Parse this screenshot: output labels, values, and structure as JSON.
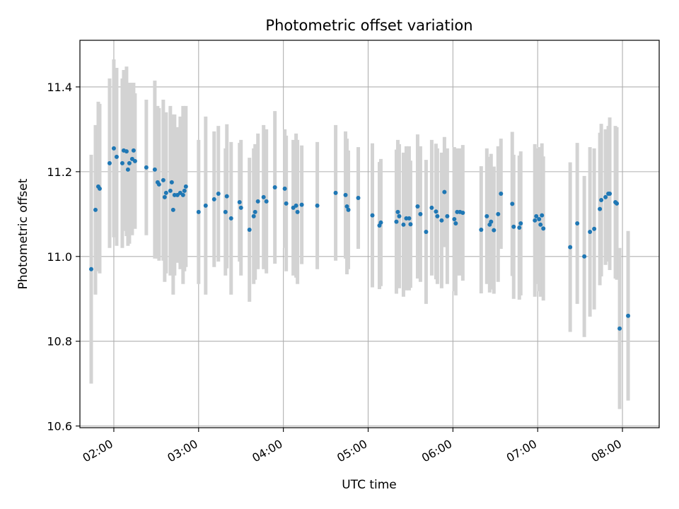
{
  "chart_data": {
    "type": "scatter",
    "title": "Photometric offset variation",
    "xlabel": "UTC time",
    "ylabel": "Photometric offset",
    "xlim": [
      "01:36",
      "08:26"
    ],
    "ylim": [
      10.596,
      11.51
    ],
    "x_ticks": [
      "02:00",
      "03:00",
      "04:00",
      "05:00",
      "06:00",
      "07:00",
      "08:00"
    ],
    "y_ticks": [
      "10.6",
      "10.8",
      "11.0",
      "11.2",
      "11.4"
    ],
    "grid": true,
    "colors": {
      "points": "#1f77b4",
      "errorbars": "#d3d3d3",
      "grid": "#b0b0b0"
    },
    "points": [
      {
        "t": "01:44",
        "y": 10.97,
        "e": 0.27
      },
      {
        "t": "01:47",
        "y": 11.11,
        "e": 0.2
      },
      {
        "t": "01:49",
        "y": 11.165,
        "e": 0.2
      },
      {
        "t": "01:50",
        "y": 11.16,
        "e": 0.2
      },
      {
        "t": "01:57",
        "y": 11.22,
        "e": 0.2
      },
      {
        "t": "02:00",
        "y": 11.255,
        "e": 0.21
      },
      {
        "t": "02:02",
        "y": 11.235,
        "e": 0.21
      },
      {
        "t": "02:06",
        "y": 11.22,
        "e": 0.2
      },
      {
        "t": "02:07",
        "y": 11.25,
        "e": 0.19
      },
      {
        "t": "02:09",
        "y": 11.248,
        "e": 0.2
      },
      {
        "t": "02:10",
        "y": 11.205,
        "e": 0.18
      },
      {
        "t": "02:11",
        "y": 11.22,
        "e": 0.19
      },
      {
        "t": "02:13",
        "y": 11.23,
        "e": 0.18
      },
      {
        "t": "02:14",
        "y": 11.25,
        "e": 0.16
      },
      {
        "t": "02:15",
        "y": 11.225,
        "e": 0.16
      },
      {
        "t": "02:23",
        "y": 11.21,
        "e": 0.16
      },
      {
        "t": "02:29",
        "y": 11.205,
        "e": 0.21
      },
      {
        "t": "02:31",
        "y": 11.175,
        "e": 0.18
      },
      {
        "t": "02:32",
        "y": 11.17,
        "e": 0.18
      },
      {
        "t": "02:35",
        "y": 11.18,
        "e": 0.19
      },
      {
        "t": "02:36",
        "y": 11.14,
        "e": 0.2
      },
      {
        "t": "02:37",
        "y": 11.15,
        "e": 0.19
      },
      {
        "t": "02:40",
        "y": 11.155,
        "e": 0.2
      },
      {
        "t": "02:41",
        "y": 11.175,
        "e": 0.16
      },
      {
        "t": "02:42",
        "y": 11.11,
        "e": 0.2
      },
      {
        "t": "02:43",
        "y": 11.145,
        "e": 0.19
      },
      {
        "t": "02:45",
        "y": 11.145,
        "e": 0.16
      },
      {
        "t": "02:47",
        "y": 11.15,
        "e": 0.18
      },
      {
        "t": "02:49",
        "y": 11.145,
        "e": 0.21
      },
      {
        "t": "02:50",
        "y": 11.155,
        "e": 0.19
      },
      {
        "t": "02:51",
        "y": 11.165,
        "e": 0.19
      },
      {
        "t": "03:00",
        "y": 11.105,
        "e": 0.17
      },
      {
        "t": "03:05",
        "y": 11.12,
        "e": 0.21
      },
      {
        "t": "03:11",
        "y": 11.135,
        "e": 0.16
      },
      {
        "t": "03:14",
        "y": 11.148,
        "e": 0.16
      },
      {
        "t": "03:19",
        "y": 11.105,
        "e": 0.15
      },
      {
        "t": "03:20",
        "y": 11.142,
        "e": 0.17
      },
      {
        "t": "03:23",
        "y": 11.09,
        "e": 0.18
      },
      {
        "t": "03:29",
        "y": 11.128,
        "e": 0.14
      },
      {
        "t": "03:30",
        "y": 11.115,
        "e": 0.16
      },
      {
        "t": "03:36",
        "y": 11.063,
        "e": 0.17
      },
      {
        "t": "03:39",
        "y": 11.095,
        "e": 0.16
      },
      {
        "t": "03:40",
        "y": 11.105,
        "e": 0.16
      },
      {
        "t": "03:42",
        "y": 11.13,
        "e": 0.16
      },
      {
        "t": "03:46",
        "y": 11.14,
        "e": 0.17
      },
      {
        "t": "03:48",
        "y": 11.13,
        "e": 0.17
      },
      {
        "t": "03:54",
        "y": 11.163,
        "e": 0.18
      },
      {
        "t": "04:01",
        "y": 11.16,
        "e": 0.14
      },
      {
        "t": "04:02",
        "y": 11.125,
        "e": 0.16
      },
      {
        "t": "04:07",
        "y": 11.115,
        "e": 0.16
      },
      {
        "t": "04:09",
        "y": 11.12,
        "e": 0.17
      },
      {
        "t": "04:10",
        "y": 11.105,
        "e": 0.17
      },
      {
        "t": "04:13",
        "y": 11.122,
        "e": 0.14
      },
      {
        "t": "04:24",
        "y": 11.12,
        "e": 0.15
      },
      {
        "t": "04:37",
        "y": 11.15,
        "e": 0.16
      },
      {
        "t": "04:44",
        "y": 11.145,
        "e": 0.15
      },
      {
        "t": "04:45",
        "y": 11.118,
        "e": 0.16
      },
      {
        "t": "04:46",
        "y": 11.11,
        "e": 0.14
      },
      {
        "t": "04:53",
        "y": 11.138,
        "e": 0.12
      },
      {
        "t": "05:03",
        "y": 11.097,
        "e": 0.17
      },
      {
        "t": "05:08",
        "y": 11.073,
        "e": 0.15
      },
      {
        "t": "05:09",
        "y": 11.08,
        "e": 0.15
      },
      {
        "t": "05:20",
        "y": 11.082,
        "e": 0.17
      },
      {
        "t": "05:21",
        "y": 11.105,
        "e": 0.17
      },
      {
        "t": "05:22",
        "y": 11.095,
        "e": 0.17
      },
      {
        "t": "05:25",
        "y": 11.075,
        "e": 0.17
      },
      {
        "t": "05:27",
        "y": 11.09,
        "e": 0.17
      },
      {
        "t": "05:29",
        "y": 11.09,
        "e": 0.17
      },
      {
        "t": "05:30",
        "y": 11.076,
        "e": 0.15
      },
      {
        "t": "05:35",
        "y": 11.118,
        "e": 0.17
      },
      {
        "t": "05:37",
        "y": 11.1,
        "e": 0.16
      },
      {
        "t": "05:41",
        "y": 11.058,
        "e": 0.17
      },
      {
        "t": "05:45",
        "y": 11.115,
        "e": 0.16
      },
      {
        "t": "05:48",
        "y": 11.106,
        "e": 0.16
      },
      {
        "t": "05:49",
        "y": 11.095,
        "e": 0.16
      },
      {
        "t": "05:52",
        "y": 11.085,
        "e": 0.16
      },
      {
        "t": "05:54",
        "y": 11.152,
        "e": 0.13
      },
      {
        "t": "05:56",
        "y": 11.095,
        "e": 0.16
      },
      {
        "t": "06:01",
        "y": 11.088,
        "e": 0.17
      },
      {
        "t": "06:02",
        "y": 11.078,
        "e": 0.17
      },
      {
        "t": "06:03",
        "y": 11.105,
        "e": 0.15
      },
      {
        "t": "06:05",
        "y": 11.105,
        "e": 0.15
      },
      {
        "t": "06:07",
        "y": 11.103,
        "e": 0.16
      },
      {
        "t": "06:20",
        "y": 11.063,
        "e": 0.15
      },
      {
        "t": "06:24",
        "y": 11.095,
        "e": 0.16
      },
      {
        "t": "06:26",
        "y": 11.075,
        "e": 0.16
      },
      {
        "t": "06:27",
        "y": 11.082,
        "e": 0.16
      },
      {
        "t": "06:29",
        "y": 11.062,
        "e": 0.15
      },
      {
        "t": "06:32",
        "y": 11.1,
        "e": 0.16
      },
      {
        "t": "06:34",
        "y": 11.148,
        "e": 0.13
      },
      {
        "t": "06:42",
        "y": 11.124,
        "e": 0.17
      },
      {
        "t": "06:43",
        "y": 11.07,
        "e": 0.17
      },
      {
        "t": "06:47",
        "y": 11.068,
        "e": 0.17
      },
      {
        "t": "06:48",
        "y": 11.078,
        "e": 0.17
      },
      {
        "t": "06:58",
        "y": 11.085,
        "e": 0.18
      },
      {
        "t": "06:59",
        "y": 11.095,
        "e": 0.16
      },
      {
        "t": "07:01",
        "y": 11.088,
        "e": 0.17
      },
      {
        "t": "07:02",
        "y": 11.075,
        "e": 0.17
      },
      {
        "t": "07:03",
        "y": 11.097,
        "e": 0.17
      },
      {
        "t": "07:04",
        "y": 11.066,
        "e": 0.17
      },
      {
        "t": "07:23",
        "y": 11.022,
        "e": 0.2
      },
      {
        "t": "07:28",
        "y": 11.078,
        "e": 0.19
      },
      {
        "t": "07:33",
        "y": 11.0,
        "e": 0.19
      },
      {
        "t": "07:37",
        "y": 11.058,
        "e": 0.2
      },
      {
        "t": "07:40",
        "y": 11.065,
        "e": 0.19
      },
      {
        "t": "07:44",
        "y": 11.112,
        "e": 0.18
      },
      {
        "t": "07:45",
        "y": 11.133,
        "e": 0.18
      },
      {
        "t": "07:48",
        "y": 11.14,
        "e": 0.16
      },
      {
        "t": "07:50",
        "y": 11.148,
        "e": 0.16
      },
      {
        "t": "07:51",
        "y": 11.148,
        "e": 0.18
      },
      {
        "t": "07:55",
        "y": 11.128,
        "e": 0.18
      },
      {
        "t": "07:56",
        "y": 11.125,
        "e": 0.18
      },
      {
        "t": "07:58",
        "y": 10.83,
        "e": 0.19
      },
      {
        "t": "08:04",
        "y": 10.86,
        "e": 0.2
      }
    ]
  }
}
